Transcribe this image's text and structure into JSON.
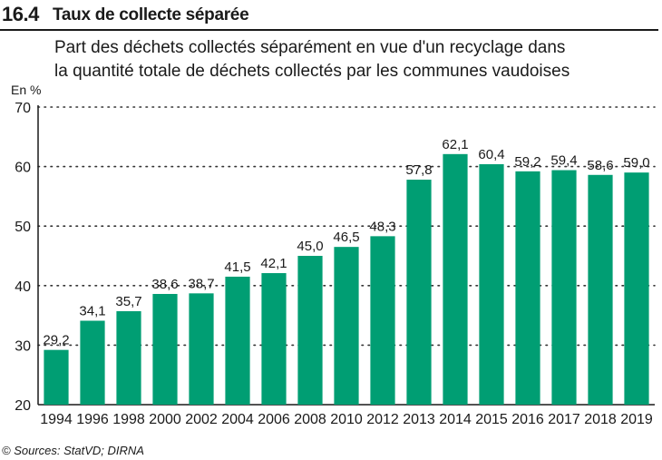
{
  "header": {
    "number": "16.4",
    "title": "Taux de collecte séparée"
  },
  "subtitle_lines": [
    "Part des déchets collectés séparément en vue d'un recyclage dans",
    "la quantité totale de déchets collectés par les communes vaudoises"
  ],
  "source": "© Sources: StatVD; DIRNA",
  "chart_data": {
    "type": "bar",
    "ylabel": "En %",
    "ylim": [
      20,
      70
    ],
    "yticks": [
      20,
      30,
      40,
      50,
      60,
      70
    ],
    "grid": "horizontal dotted",
    "categories": [
      "1994",
      "1996",
      "1998",
      "2000",
      "2002",
      "2004",
      "2006",
      "2008",
      "2010",
      "2012",
      "2013",
      "2014",
      "2015",
      "2016",
      "2017",
      "2018",
      "2019"
    ],
    "values": [
      29.2,
      34.1,
      35.7,
      38.6,
      38.7,
      41.5,
      42.1,
      45.0,
      46.5,
      48.3,
      57.8,
      62.1,
      60.4,
      59.2,
      59.4,
      58.6,
      59.0
    ],
    "data_labels": [
      "29,2",
      "34,1",
      "35,7",
      "38,6",
      "38,7",
      "41,5",
      "42,1",
      "45,0",
      "46,5",
      "48,3",
      "57,8",
      "62,1",
      "60,4",
      "59,2",
      "59,4",
      "58,6",
      "59,0"
    ],
    "bar_color": "#009e73"
  }
}
